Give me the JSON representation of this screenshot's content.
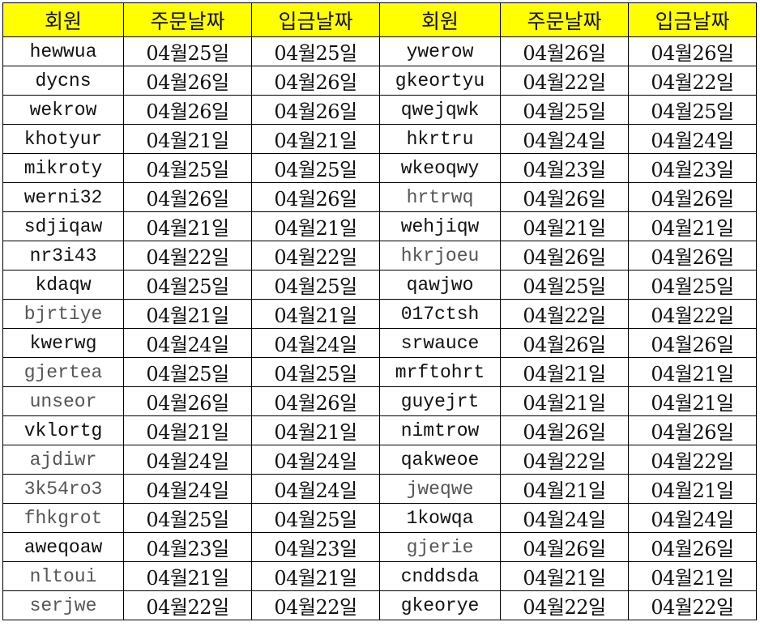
{
  "headers": [
    "회원",
    "주문날짜",
    "입금날짜",
    "회원",
    "주문날짜",
    "입금날짜"
  ],
  "header_bg": "#ffff00",
  "rows": [
    {
      "left": {
        "member": "hewwua",
        "order": "04월25일",
        "deposit": "04월25일",
        "muted": false
      },
      "right": {
        "member": "ywerow",
        "order": "04월26일",
        "deposit": "04월26일",
        "muted": false
      }
    },
    {
      "left": {
        "member": "dycns",
        "order": "04월26일",
        "deposit": "04월26일",
        "muted": false
      },
      "right": {
        "member": "gkeortyu",
        "order": "04월22일",
        "deposit": "04월22일",
        "muted": false
      }
    },
    {
      "left": {
        "member": "wekrow",
        "order": "04월26일",
        "deposit": "04월26일",
        "muted": false
      },
      "right": {
        "member": "qwejqwk",
        "order": "04월25일",
        "deposit": "04월25일",
        "muted": false
      }
    },
    {
      "left": {
        "member": "khotyur",
        "order": "04월21일",
        "deposit": "04월21일",
        "muted": false
      },
      "right": {
        "member": "hkrtru",
        "order": "04월24일",
        "deposit": "04월24일",
        "muted": false
      }
    },
    {
      "left": {
        "member": "mikroty",
        "order": "04월25일",
        "deposit": "04월25일",
        "muted": false
      },
      "right": {
        "member": "wkeoqwy",
        "order": "04월23일",
        "deposit": "04월23일",
        "muted": false
      }
    },
    {
      "left": {
        "member": "werni32",
        "order": "04월26일",
        "deposit": "04월26일",
        "muted": false
      },
      "right": {
        "member": "hrtrwq",
        "order": "04월26일",
        "deposit": "04월26일",
        "muted": true
      }
    },
    {
      "left": {
        "member": "sdjiqaw",
        "order": "04월21일",
        "deposit": "04월21일",
        "muted": false
      },
      "right": {
        "member": "wehjiqw",
        "order": "04월21일",
        "deposit": "04월21일",
        "muted": false
      }
    },
    {
      "left": {
        "member": "nr3i43",
        "order": "04월22일",
        "deposit": "04월22일",
        "muted": false
      },
      "right": {
        "member": "hkrjoeu",
        "order": "04월26일",
        "deposit": "04월26일",
        "muted": true
      }
    },
    {
      "left": {
        "member": "kdaqw",
        "order": "04월25일",
        "deposit": "04월25일",
        "muted": false
      },
      "right": {
        "member": "qawjwo",
        "order": "04월25일",
        "deposit": "04월25일",
        "muted": false
      }
    },
    {
      "left": {
        "member": "bjrtiye",
        "order": "04월21일",
        "deposit": "04월21일",
        "muted": true
      },
      "right": {
        "member": "017ctsh",
        "order": "04월22일",
        "deposit": "04월22일",
        "muted": false
      }
    },
    {
      "left": {
        "member": "kwerwg",
        "order": "04월24일",
        "deposit": "04월24일",
        "muted": false
      },
      "right": {
        "member": "srwauce",
        "order": "04월26일",
        "deposit": "04월26일",
        "muted": false
      }
    },
    {
      "left": {
        "member": "gjertea",
        "order": "04월25일",
        "deposit": "04월25일",
        "muted": true
      },
      "right": {
        "member": "mrftohrt",
        "order": "04월21일",
        "deposit": "04월21일",
        "muted": false
      }
    },
    {
      "left": {
        "member": "unseor",
        "order": "04월26일",
        "deposit": "04월26일",
        "muted": true
      },
      "right": {
        "member": "guyejrt",
        "order": "04월21일",
        "deposit": "04월21일",
        "muted": false
      }
    },
    {
      "left": {
        "member": "vklortg",
        "order": "04월21일",
        "deposit": "04월21일",
        "muted": false
      },
      "right": {
        "member": "nimtrow",
        "order": "04월26일",
        "deposit": "04월26일",
        "muted": false
      }
    },
    {
      "left": {
        "member": "ajdiwr",
        "order": "04월24일",
        "deposit": "04월24일",
        "muted": true
      },
      "right": {
        "member": "qakweoe",
        "order": "04월22일",
        "deposit": "04월22일",
        "muted": false
      }
    },
    {
      "left": {
        "member": "3k54ro3",
        "order": "04월24일",
        "deposit": "04월24일",
        "muted": true
      },
      "right": {
        "member": "jweqwe",
        "order": "04월21일",
        "deposit": "04월21일",
        "muted": true
      }
    },
    {
      "left": {
        "member": "fhkgrot",
        "order": "04월25일",
        "deposit": "04월25일",
        "muted": true
      },
      "right": {
        "member": "1kowqa",
        "order": "04월24일",
        "deposit": "04월24일",
        "muted": false
      }
    },
    {
      "left": {
        "member": "aweqoaw",
        "order": "04월23일",
        "deposit": "04월23일",
        "muted": false
      },
      "right": {
        "member": "gjerie",
        "order": "04월26일",
        "deposit": "04월26일",
        "muted": true
      }
    },
    {
      "left": {
        "member": "nltoui",
        "order": "04월21일",
        "deposit": "04월21일",
        "muted": true
      },
      "right": {
        "member": "cnddsda",
        "order": "04월21일",
        "deposit": "04월21일",
        "muted": false
      }
    },
    {
      "left": {
        "member": "serjwe",
        "order": "04월22일",
        "deposit": "04월22일",
        "muted": true
      },
      "right": {
        "member": "gkeorye",
        "order": "04월22일",
        "deposit": "04월22일",
        "muted": false
      }
    }
  ]
}
